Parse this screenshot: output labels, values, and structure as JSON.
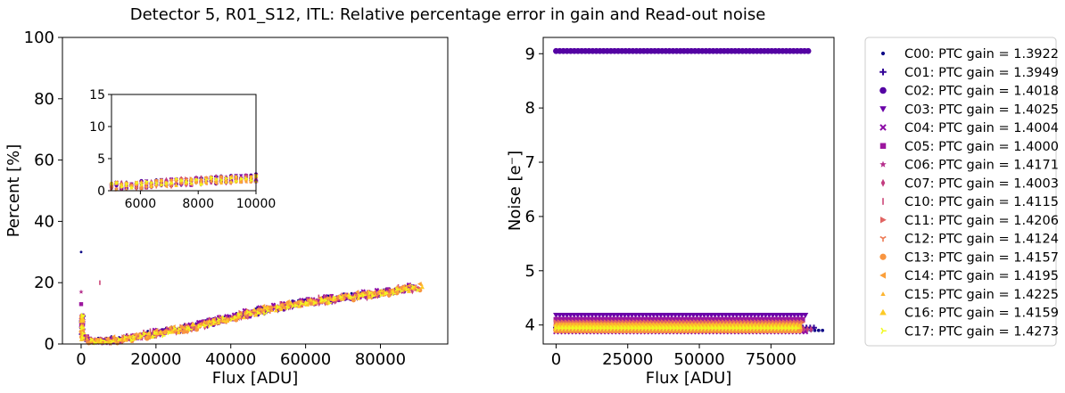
{
  "figure": {
    "title": "Detector 5, R01_S12, ITL: Relative percentage error in gain and Read-out noise"
  },
  "legend": {
    "entries": [
      {
        "label": "C00: PTC gain = 1.3922",
        "color": "#0d0887",
        "marker": "dot"
      },
      {
        "label": "C01: PTC gain = 1.3949",
        "color": "#330597",
        "marker": "plus"
      },
      {
        "label": "C02: PTC gain = 1.4018",
        "color": "#5402a3",
        "marker": "circle"
      },
      {
        "label": "C03: PTC gain = 1.4025",
        "color": "#6a00a8",
        "marker": "triangle-down"
      },
      {
        "label": "C04: PTC gain = 1.4004",
        "color": "#8b0aa5",
        "marker": "x"
      },
      {
        "label": "C05: PTC gain = 1.4000",
        "color": "#9c179e",
        "marker": "square"
      },
      {
        "label": "C06: PTC gain = 1.4171",
        "color": "#b52f8c",
        "marker": "star"
      },
      {
        "label": "C07: PTC gain = 1.4003",
        "color": "#c33d80",
        "marker": "thin-diamond"
      },
      {
        "label": "C10: PTC gain = 1.4115",
        "color": "#cc4778",
        "marker": "vline"
      },
      {
        "label": "C11: PTC gain = 1.4206",
        "color": "#e16462",
        "marker": "triangle-right"
      },
      {
        "label": "C12: PTC gain = 1.4124",
        "color": "#ed7953",
        "marker": "tri-down"
      },
      {
        "label": "C13: PTC gain = 1.4157",
        "color": "#f89540",
        "marker": "octagon"
      },
      {
        "label": "C14: PTC gain = 1.4195",
        "color": "#fb9f3a",
        "marker": "triangle-left"
      },
      {
        "label": "C15: PTC gain = 1.4225",
        "color": "#fdb42f",
        "marker": "triangle-up-small"
      },
      {
        "label": "C16: PTC gain = 1.4159",
        "color": "#fdca26",
        "marker": "triangle-up"
      },
      {
        "label": "C17: PTC gain = 1.4273",
        "color": "#f0f921",
        "marker": "tri-right"
      }
    ]
  },
  "chart_data": [
    {
      "type": "scatter",
      "panel": "left",
      "title": "",
      "xlabel": "Flux [ADU]",
      "ylabel": "Percent [%]",
      "xlim": [
        -5000,
        98000
      ],
      "ylim": [
        0,
        100
      ],
      "xticks": [
        "0",
        "20000",
        "40000",
        "60000",
        "80000"
      ],
      "yticks": [
        "0",
        "20",
        "40",
        "60",
        "80",
        "100"
      ],
      "series_note": "16 amplifiers C00–C17; relative error in gain vs flux",
      "trend": {
        "x": [
          0,
          300,
          1000,
          2000,
          5000,
          10000,
          20000,
          30000,
          40000,
          50000,
          60000,
          70000,
          80000,
          90000
        ],
        "y": [
          9,
          4,
          2.5,
          1.6,
          1.2,
          1.8,
          3.8,
          6.0,
          9.0,
          11.8,
          14.0,
          15.5,
          17.0,
          19.0
        ]
      },
      "outliers": [
        {
          "series": "C00",
          "x": 0,
          "y": 30
        },
        {
          "series": "C06",
          "x": 0,
          "y": 17
        },
        {
          "series": "C10",
          "x": 5000,
          "y": 20
        },
        {
          "series": "C05",
          "x": 0,
          "y": 13
        }
      ],
      "inset": {
        "xlim": [
          5000,
          10000
        ],
        "ylim": [
          0,
          15
        ],
        "xticks": [
          "6000",
          "8000",
          "10000"
        ],
        "yticks": [
          "0",
          "5",
          "10",
          "15"
        ]
      }
    },
    {
      "type": "scatter",
      "panel": "right",
      "title": "",
      "xlabel": "Flux [ADU]",
      "ylabel": "Noise [e⁻]",
      "xlim": [
        -4500,
        97000
      ],
      "ylim": [
        3.65,
        9.3
      ],
      "xticks": [
        "0",
        "25000",
        "50000",
        "75000"
      ],
      "yticks": [
        "4",
        "5",
        "6",
        "7",
        "8",
        "9"
      ],
      "series": [
        {
          "series": "C02",
          "noise": 9.05,
          "x_range": [
            0,
            88000
          ]
        },
        {
          "series": "C00",
          "noise": 3.9,
          "x_range": [
            0,
            93000
          ]
        },
        {
          "series": "C01",
          "noise": 3.95,
          "x_range": [
            0,
            90000
          ]
        },
        {
          "series": "C03",
          "noise": 4.18,
          "x_range": [
            0,
            87000
          ]
        },
        {
          "series": "C04",
          "noise": 3.88,
          "x_range": [
            0,
            87000
          ]
        },
        {
          "series": "C05",
          "noise": 4.1,
          "x_range": [
            0,
            86000
          ]
        },
        {
          "series": "C06",
          "noise": 3.93,
          "x_range": [
            0,
            86000
          ]
        },
        {
          "series": "C07",
          "noise": 3.92,
          "x_range": [
            0,
            89000
          ]
        },
        {
          "series": "C10",
          "noise": 3.98,
          "x_range": [
            0,
            85000
          ]
        },
        {
          "series": "C11",
          "noise": 4.05,
          "x_range": [
            0,
            86000
          ]
        },
        {
          "series": "C12",
          "noise": 3.96,
          "x_range": [
            0,
            85000
          ]
        },
        {
          "series": "C13",
          "noise": 3.9,
          "x_range": [
            0,
            85000
          ]
        },
        {
          "series": "C14",
          "noise": 4.0,
          "x_range": [
            0,
            85000
          ]
        },
        {
          "series": "C15",
          "noise": 4.02,
          "x_range": [
            0,
            84000
          ]
        },
        {
          "series": "C16",
          "noise": 3.97,
          "x_range": [
            0,
            85000
          ]
        },
        {
          "series": "C17",
          "noise": 3.94,
          "x_range": [
            0,
            84000
          ]
        }
      ]
    }
  ]
}
